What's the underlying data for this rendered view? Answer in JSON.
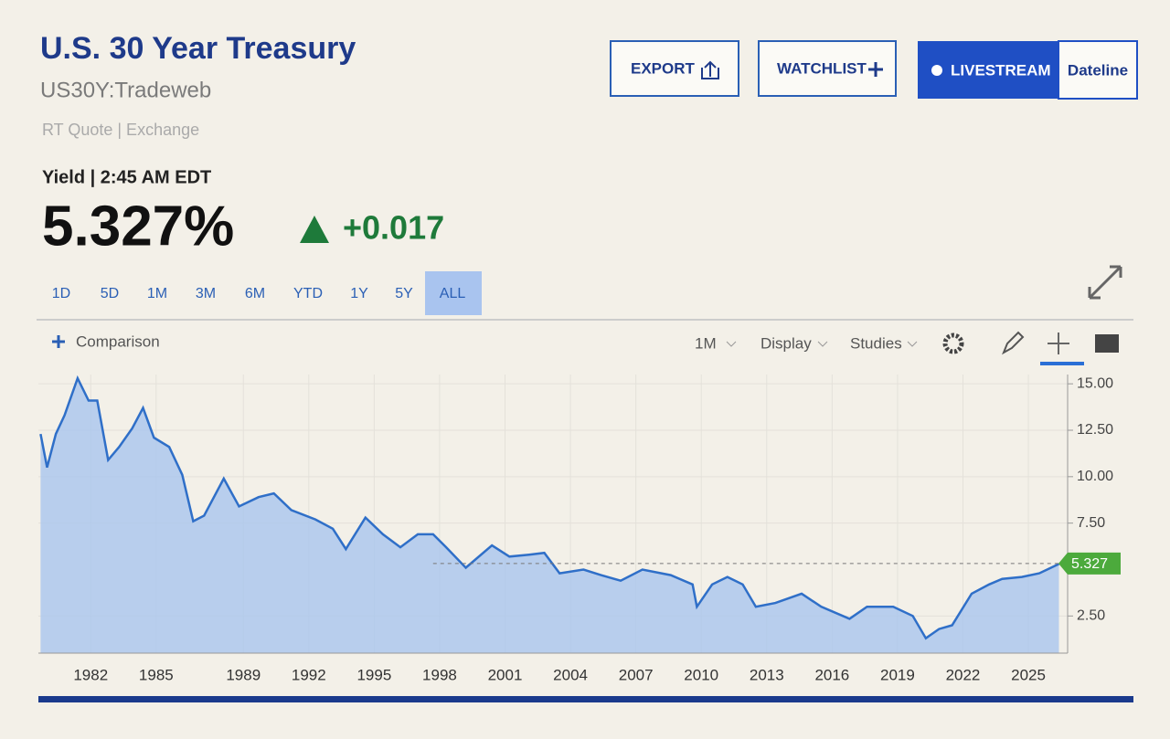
{
  "header": {
    "title": "U.S. 30 Year Treasury",
    "symbol": "US30Y:Tradeweb",
    "source": "RT Quote | Exchange",
    "time": "Yield | 2:45 AM EDT",
    "price": "5.327%",
    "change": "+0.017"
  },
  "buttons": [
    "EXPORT",
    "WATCHLIST",
    "LIVESTREAM",
    "Dateline"
  ],
  "ranges": [
    "1D",
    "5D",
    "1M",
    "3M",
    "6M",
    "YTD",
    "1Y",
    "5Y",
    "ALL"
  ],
  "toolbar": {
    "comparison": "Comparison",
    "interval": "1M",
    "display": "Display",
    "studies": "Studies"
  },
  "chart_data": {
    "type": "area",
    "color": "#2f6fc8",
    "fill": "#a9c6ee",
    "grid": true,
    "x": [
      1979.7,
      1980.0,
      1980.4,
      1980.8,
      1981.4,
      1981.9,
      1982.3,
      1982.8,
      1983.3,
      1983.9,
      1984.4,
      1984.9,
      1985.6,
      1986.2,
      1986.7,
      1987.2,
      1988.1,
      1988.8,
      1989.7,
      1990.4,
      1991.2,
      1992.3,
      1993.1,
      1993.7,
      1994.6,
      1995.4,
      1996.2,
      1997.0,
      1997.7,
      1998.3,
      1999.2,
      2000.4,
      2001.2,
      2002.1,
      2002.8,
      2003.5,
      2004.6,
      2005.4,
      2006.3,
      2007.3,
      2008.6,
      2009.6,
      2009.8,
      2010.5,
      2011.2,
      2011.9,
      2012.5,
      2013.4,
      2014.6,
      2015.5,
      2016.8,
      2017.6,
      2018.8,
      2019.7,
      2020.3,
      2020.9,
      2021.5,
      2022.4,
      2023.2,
      2023.8,
      2024.7,
      2025.5,
      2026.4
    ],
    "values": [
      12.3,
      10.5,
      12.3,
      13.3,
      15.3,
      14.1,
      14.1,
      10.9,
      11.6,
      12.6,
      13.7,
      12.1,
      11.6,
      10.1,
      7.6,
      7.9,
      9.9,
      8.4,
      8.9,
      9.1,
      8.2,
      7.7,
      7.2,
      6.1,
      7.8,
      6.9,
      6.2,
      6.9,
      6.9,
      6.2,
      5.1,
      6.3,
      5.7,
      5.8,
      5.9,
      4.8,
      5.0,
      4.7,
      4.4,
      5.0,
      4.7,
      4.2,
      3.0,
      4.2,
      4.6,
      4.2,
      3.0,
      3.2,
      3.7,
      3.0,
      2.35,
      3.0,
      3.0,
      2.5,
      1.3,
      1.8,
      2.0,
      3.7,
      4.2,
      4.5,
      4.6,
      4.8,
      5.3
    ],
    "last_value": 5.327,
    "xlim": [
      1979.6,
      2026.8
    ],
    "xticks": [
      1982,
      1985,
      1989,
      1992,
      1995,
      1998,
      2001,
      2004,
      2007,
      2010,
      2013,
      2016,
      2019,
      2022,
      2025
    ],
    "ylim": [
      0.5,
      15.5
    ],
    "yticks": [
      {
        "value": 15,
        "label": "15.00"
      },
      {
        "value": 12.5,
        "label": "12.50"
      },
      {
        "value": 10,
        "label": "10.00"
      },
      {
        "value": 7.5,
        "label": "7.50"
      },
      {
        "value": 2.5,
        "label": "2.50"
      }
    ]
  }
}
